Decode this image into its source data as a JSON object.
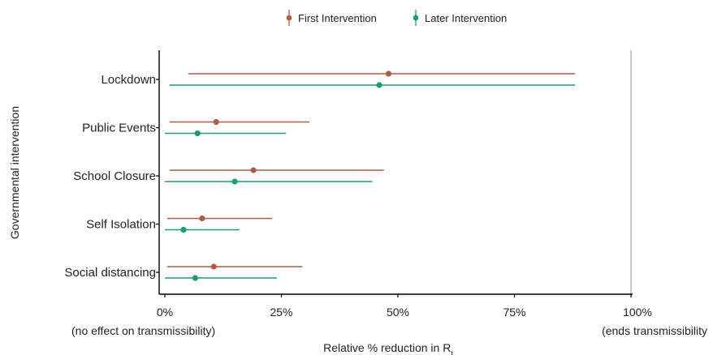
{
  "chart_data": {
    "type": "forest",
    "xlabel": "Relative % reduction in R",
    "xlabel_subscript": "t",
    "ylabel": "Governmental intervention",
    "xlim": [
      0,
      100
    ],
    "xticks": [
      {
        "value": 0,
        "label": "0%",
        "sublabel": "(no effect on transmissibility)"
      },
      {
        "value": 25,
        "label": "25%",
        "sublabel": ""
      },
      {
        "value": 50,
        "label": "50%",
        "sublabel": ""
      },
      {
        "value": 75,
        "label": "75%",
        "sublabel": ""
      },
      {
        "value": 100,
        "label": "100%",
        "sublabel": "(ends transmissibility"
      }
    ],
    "reference_line": 100,
    "legend_position": "top-center",
    "categories": [
      "Lockdown",
      "Public Events",
      "School Closure",
      "Self Isolation",
      "Social distancing"
    ],
    "series": [
      {
        "name": "First Intervention",
        "color": "#b05a44",
        "points": [
          {
            "category": "Lockdown",
            "estimate": 48,
            "lower": 5,
            "upper": 88
          },
          {
            "category": "Public Events",
            "estimate": 11,
            "lower": 1,
            "upper": 31
          },
          {
            "category": "School Closure",
            "estimate": 19,
            "lower": 1,
            "upper": 47
          },
          {
            "category": "Self Isolation",
            "estimate": 8,
            "lower": 0.5,
            "upper": 23
          },
          {
            "category": "Social distancing",
            "estimate": 10.5,
            "lower": 0.5,
            "upper": 29.5
          }
        ]
      },
      {
        "name": "Later Intervention",
        "color": "#1a9b72",
        "points": [
          {
            "category": "Lockdown",
            "estimate": 46,
            "lower": 1,
            "upper": 88
          },
          {
            "category": "Public Events",
            "estimate": 7,
            "lower": 0,
            "upper": 26
          },
          {
            "category": "School Closure",
            "estimate": 15,
            "lower": 0,
            "upper": 44.5
          },
          {
            "category": "Self Isolation",
            "estimate": 4,
            "lower": 0,
            "upper": 16
          },
          {
            "category": "Social distancing",
            "estimate": 6.5,
            "lower": 0,
            "upper": 24
          }
        ]
      }
    ]
  }
}
